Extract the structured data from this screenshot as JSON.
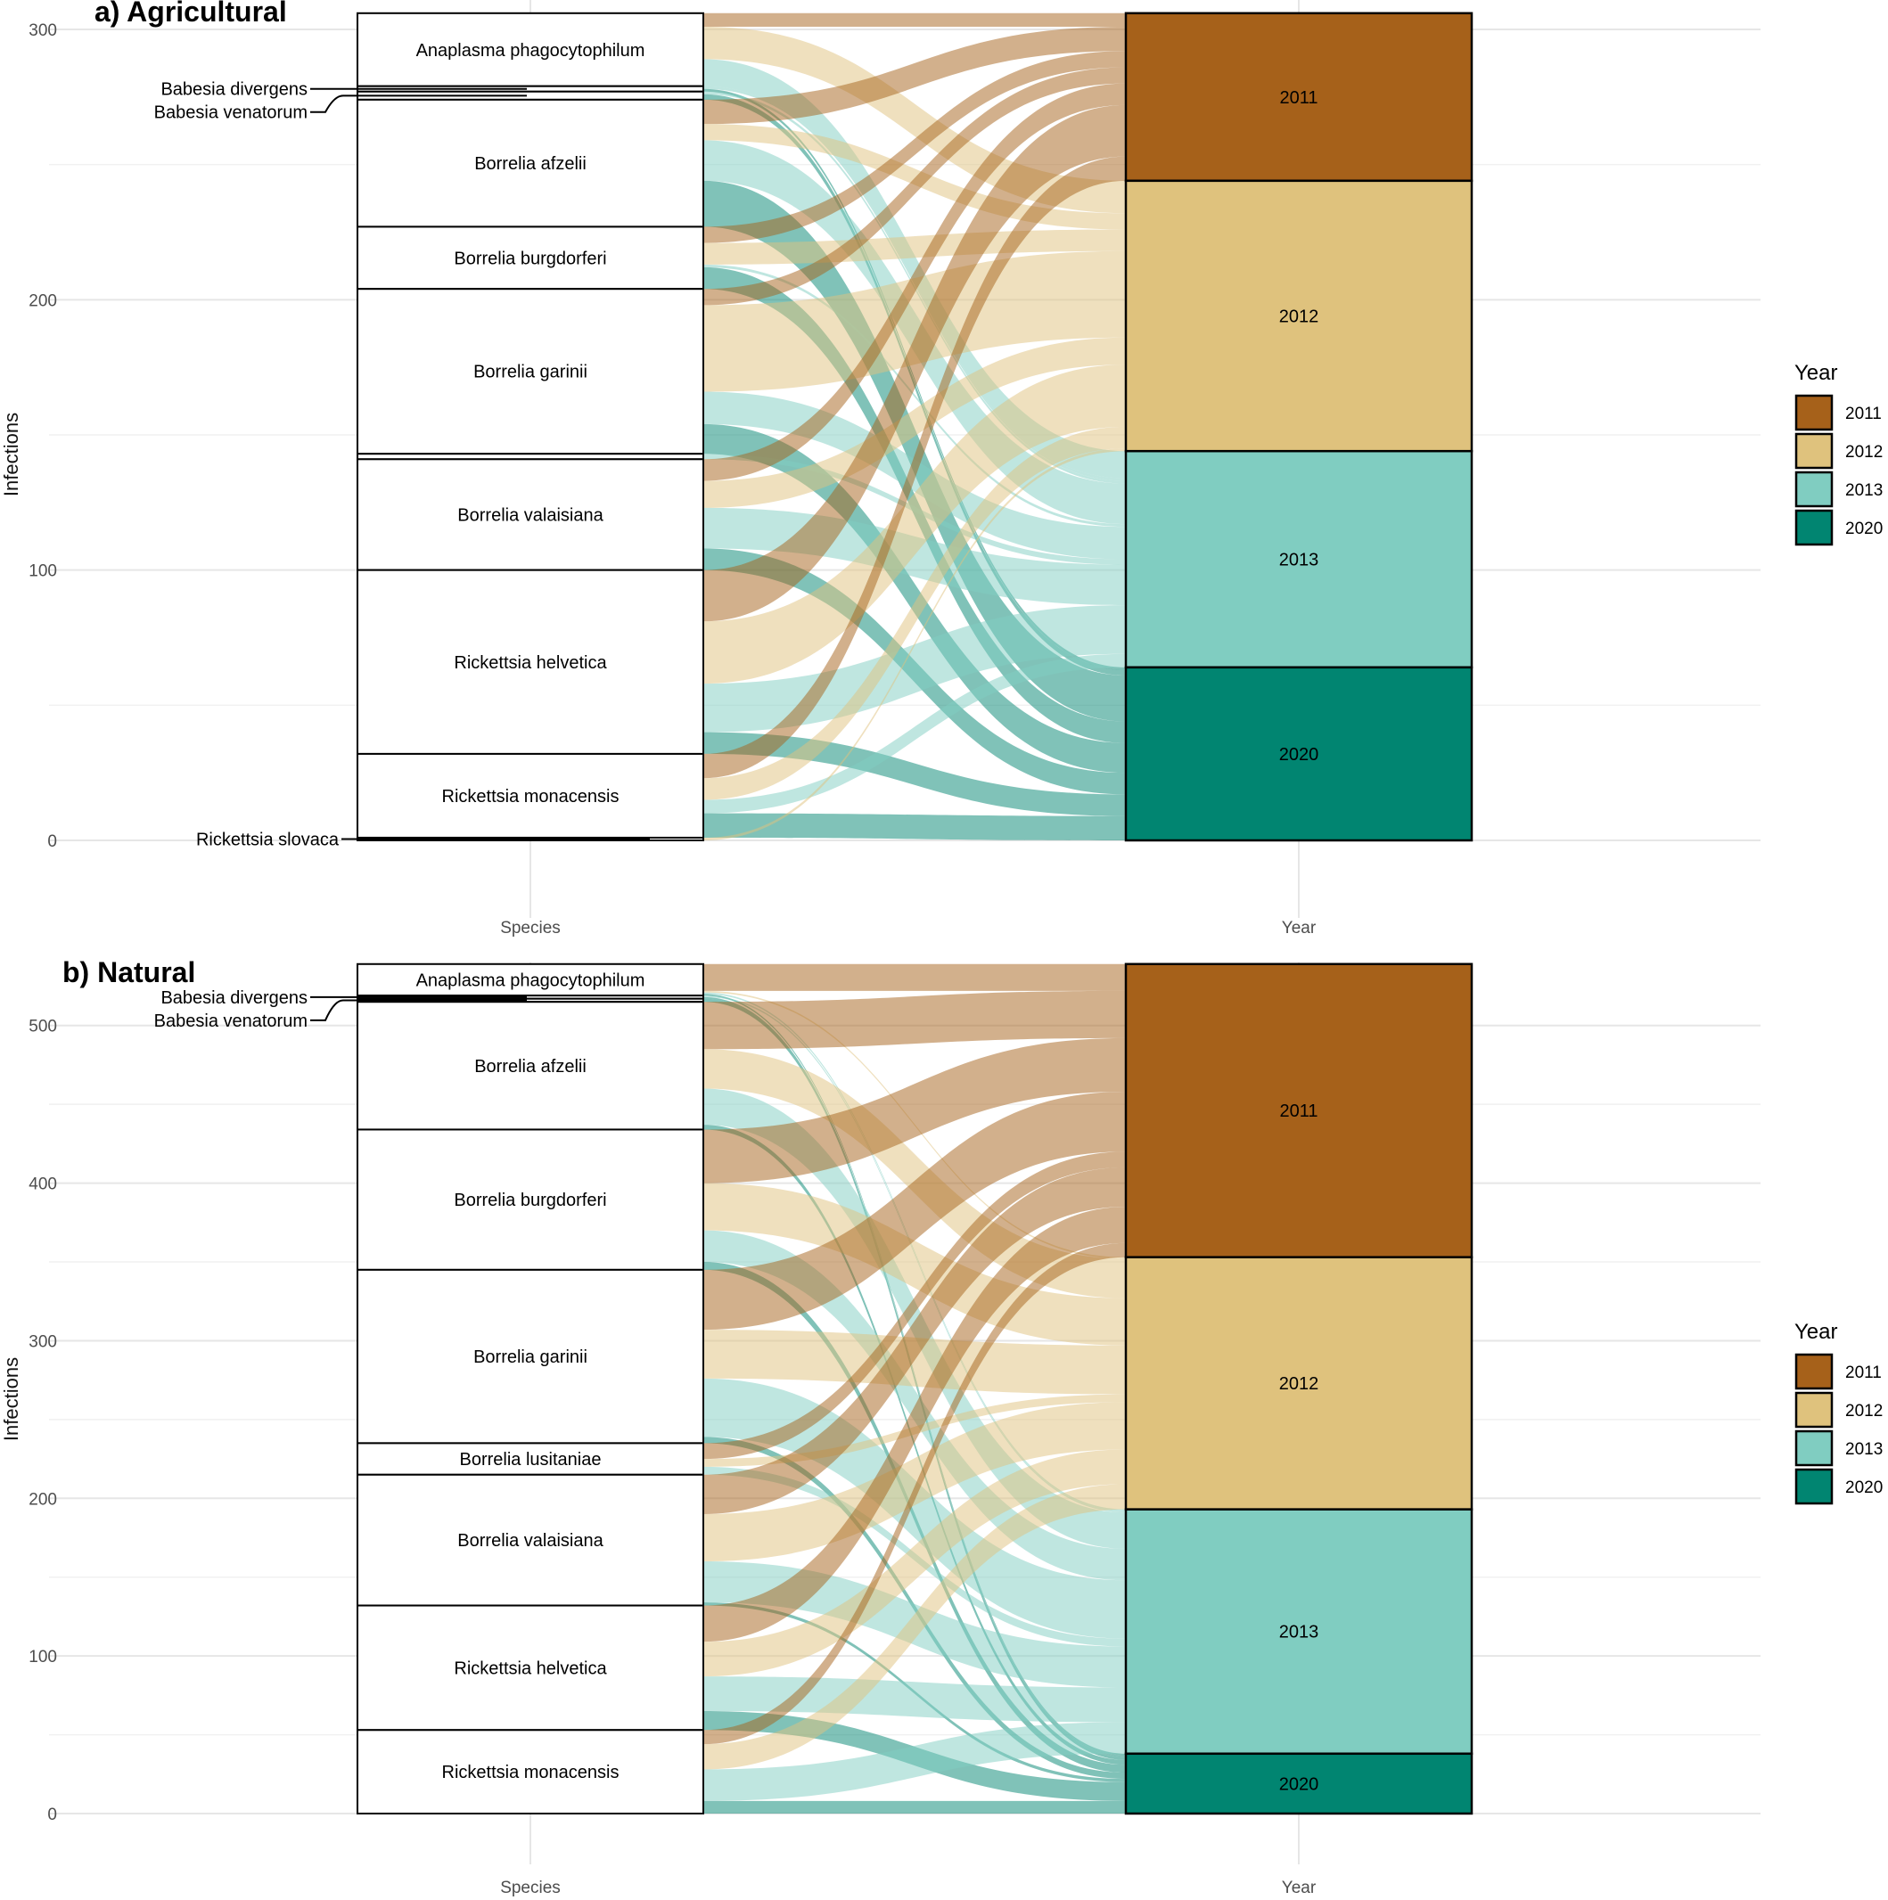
{
  "colors": {
    "2011": "#a6611a",
    "2012": "#dfc27d",
    "2013": "#80cdc1",
    "2020": "#018571"
  },
  "chart_data": [
    {
      "type": "alluvial",
      "title": "a) Agricultural",
      "ylabel": "Infections",
      "xlabel": "",
      "axes": [
        "Species",
        "Year"
      ],
      "ylim": [
        0,
        300
      ],
      "yticks": [
        0,
        100,
        200,
        300
      ],
      "legend": {
        "title": "Year",
        "position": "right",
        "entries": [
          "2011",
          "2012",
          "2013",
          "2020"
        ]
      },
      "years": [
        "2011",
        "2012",
        "2013",
        "2020"
      ],
      "species": [
        {
          "name": "Anaplasma phagocytophilum",
          "values": [
            5,
            12,
            10,
            0
          ],
          "label_position": "inside"
        },
        {
          "name": "Babesia divergens",
          "values": [
            0,
            0,
            1,
            1
          ],
          "label_position": "outside"
        },
        {
          "name": "Babesia venatorum",
          "values": [
            0,
            0,
            1,
            2
          ],
          "label_position": "outside"
        },
        {
          "name": "Borrelia afzelii",
          "values": [
            9,
            6,
            15,
            17
          ],
          "label_position": "inside"
        },
        {
          "name": "Borrelia burgdorferi",
          "values": [
            6,
            8,
            1,
            8
          ],
          "label_position": "inside"
        },
        {
          "name": "Borrelia garinii",
          "values": [
            6,
            32,
            12,
            11
          ],
          "label_position": "inside"
        },
        {
          "name": "",
          "values": [
            0,
            0,
            2,
            0
          ],
          "label_position": "none"
        },
        {
          "name": "Borrelia valaisiana",
          "values": [
            8,
            10,
            15,
            8
          ],
          "label_position": "inside"
        },
        {
          "name": "Rickettsia helvetica",
          "values": [
            19,
            23,
            18,
            8
          ],
          "label_position": "inside"
        },
        {
          "name": "Rickettsia monacensis",
          "values": [
            9,
            8,
            5,
            9
          ],
          "label_position": "inside"
        },
        {
          "name": "Rickettsia slovaca",
          "values": [
            0,
            1,
            0,
            0
          ],
          "label_position": "outside"
        }
      ]
    },
    {
      "type": "alluvial",
      "title": "b) Natural",
      "ylabel": "Infections",
      "xlabel": "",
      "axes": [
        "Species",
        "Year"
      ],
      "ylim": [
        0,
        540
      ],
      "yticks": [
        0,
        100,
        200,
        300,
        400,
        500
      ],
      "legend": {
        "title": "Year",
        "position": "right",
        "entries": [
          "2011",
          "2012",
          "2013",
          "2020"
        ]
      },
      "years": [
        "2011",
        "2012",
        "2013",
        "2020"
      ],
      "species": [
        {
          "name": "Anaplasma phagocytophilum",
          "values": [
            17,
            1,
            1,
            1
          ],
          "label_position": "inside"
        },
        {
          "name": "Babesia divergens",
          "values": [
            0,
            0,
            1,
            1
          ],
          "label_position": "outside"
        },
        {
          "name": "Babesia venatorum",
          "values": [
            0,
            0,
            0,
            2
          ],
          "label_position": "outside"
        },
        {
          "name": "Borrelia afzelii",
          "values": [
            30,
            25,
            23,
            3
          ],
          "label_position": "inside"
        },
        {
          "name": "Borrelia burgdorferi",
          "values": [
            34,
            30,
            20,
            5
          ],
          "label_position": "inside"
        },
        {
          "name": "Borrelia garinii",
          "values": [
            38,
            31,
            37,
            4
          ],
          "label_position": "inside"
        },
        {
          "name": "Borrelia lusitaniae",
          "values": [
            10,
            5,
            5,
            0
          ],
          "label_position": "inside"
        },
        {
          "name": "Borrelia valaisiana",
          "values": [
            25,
            30,
            26,
            2
          ],
          "label_position": "inside"
        },
        {
          "name": "Rickettsia helvetica",
          "values": [
            23,
            22,
            22,
            12
          ],
          "label_position": "inside"
        },
        {
          "name": "Rickettsia monacensis",
          "values": [
            9,
            16,
            20,
            8
          ],
          "label_position": "inside"
        }
      ]
    }
  ]
}
